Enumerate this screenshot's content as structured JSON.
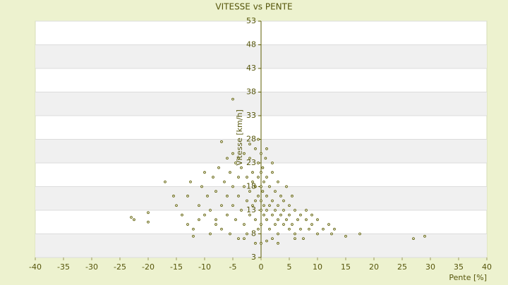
{
  "chart_data": {
    "type": "scatter",
    "title": "VITESSE vs PENTE",
    "x_label": "Pente [%]",
    "y_label": "Vitesse [km/h]",
    "xlim": [
      -40,
      40
    ],
    "xticks": [
      -40,
      -35,
      -30,
      -25,
      -20,
      -15,
      -10,
      -5,
      0,
      5,
      10,
      15,
      20,
      25,
      30,
      35,
      40
    ],
    "ylim": [
      3,
      53
    ],
    "yticks": [
      3,
      8,
      13,
      18,
      23,
      28,
      33,
      38,
      43,
      48,
      53
    ],
    "grid": true,
    "color": "#5c5c00",
    "x": [
      -5,
      -7,
      -23,
      -22.5,
      -20,
      -20,
      -17,
      -15.5,
      -15,
      -13,
      -12.5,
      -12,
      -12,
      -11,
      -10.5,
      -10,
      -10,
      -9.5,
      -9,
      -9,
      -8.5,
      -8,
      -8,
      -7.5,
      -7,
      -7,
      -6.5,
      -6,
      -6,
      -6,
      -5.5,
      -5.5,
      -5,
      -5,
      -5,
      -4.5,
      -4.5,
      -4,
      -4,
      -4,
      -3.5,
      -3.5,
      -3,
      -3,
      -3,
      -2.5,
      -2.5,
      -2.5,
      -2,
      -2,
      -2,
      -1.5,
      -1.5,
      -1.5,
      -1,
      -1,
      -1,
      -1,
      -0.5,
      -0.5,
      -0.5,
      -0.5,
      0,
      0,
      0,
      0,
      0,
      0,
      0,
      0.3,
      0.3,
      0.5,
      0.5,
      0.5,
      0.8,
      1,
      1,
      1,
      1,
      1.5,
      1.5,
      1.5,
      2,
      2,
      2,
      2,
      2.5,
      2.5,
      2.5,
      3,
      3,
      3,
      3,
      3.5,
      3.5,
      4,
      4,
      4,
      4.5,
      4.5,
      5,
      5,
      5,
      5.5,
      5.5,
      6,
      6,
      6.5,
      7,
      7,
      7.5,
      8,
      8,
      8.5,
      9,
      9,
      10,
      10,
      11,
      12,
      12.5,
      13,
      15,
      17.5,
      27,
      29,
      -1,
      1,
      -3,
      3,
      6,
      -8,
      -14,
      -11,
      -13,
      -2,
      1,
      -4,
      2,
      -0.5
    ],
    "y": [
      36.5,
      27.5,
      11.5,
      11,
      12.5,
      10.5,
      19,
      16,
      14,
      16,
      19,
      9,
      7.5,
      14,
      18,
      12,
      21,
      16,
      8,
      13,
      20,
      17,
      11,
      22,
      14,
      9,
      19,
      24,
      12,
      16,
      21,
      8,
      25,
      14,
      18,
      23,
      11,
      20,
      16,
      7,
      22,
      13,
      25,
      18,
      10,
      20,
      15,
      8,
      24,
      17,
      12,
      21,
      14,
      19,
      26,
      18,
      11,
      15,
      23,
      16,
      9,
      20,
      25,
      18,
      13,
      6,
      21,
      15,
      10,
      22,
      17,
      19,
      12,
      14,
      24,
      20,
      16,
      11,
      13,
      18,
      14,
      9,
      21,
      15,
      12,
      7,
      17,
      13,
      10,
      19,
      14,
      11,
      8,
      16,
      12,
      15,
      10,
      13,
      18,
      11,
      14,
      9,
      12,
      16,
      10,
      13,
      8,
      11,
      12,
      9,
      7,
      11,
      13,
      9,
      10,
      12,
      8,
      11,
      9,
      10,
      8,
      9,
      7.5,
      8,
      7,
      7.5,
      6,
      6.5,
      7,
      6,
      7,
      10,
      12,
      11,
      10,
      27,
      26,
      24,
      23,
      28
    ]
  }
}
